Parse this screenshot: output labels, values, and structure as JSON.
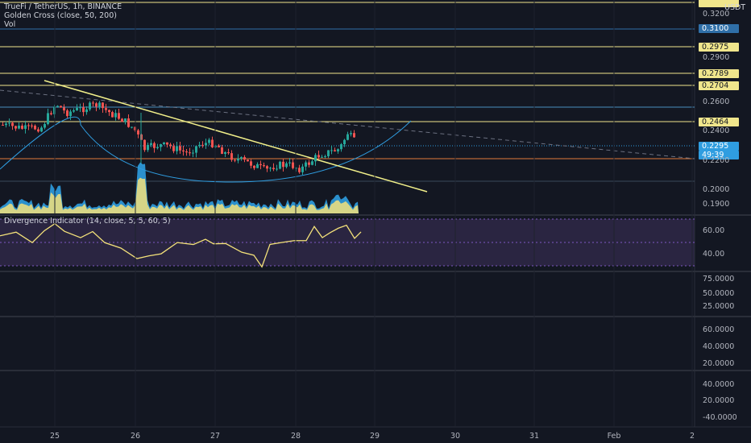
{
  "header": {
    "symbol_line": "TrueFi / TetherUS, 1h, BINANCE",
    "indicator_line": "Golden Cross (close, 50, 200)",
    "volume_label": "Vol"
  },
  "price_axis": {
    "currency": "USDT",
    "ticks": [
      "0.3200",
      "0.3100",
      "0.2900",
      "0.2600",
      "0.2400",
      "0.2200",
      "0.2000",
      "0.1900"
    ],
    "level_tags": [
      "0.2975",
      "0.2789",
      "0.2704",
      "0.2464"
    ],
    "current_price": "0.2295",
    "countdown": "49:39"
  },
  "divergence": {
    "title": "Divergence Indicator (14, close, 5, 5, 60, 5)",
    "ticks": [
      "60.00",
      "40.00"
    ]
  },
  "pane3": {
    "ticks": [
      "75.0000",
      "50.0000",
      "25.0000"
    ]
  },
  "pane4": {
    "ticks": [
      "60.0000",
      "40.0000",
      "20.0000"
    ]
  },
  "pane5": {
    "ticks": [
      "40.0000",
      "20.0000",
      "-40.0000"
    ]
  },
  "time_axis": {
    "labels": [
      "25",
      "26",
      "27",
      "28",
      "29",
      "30",
      "31",
      "Feb",
      "2"
    ]
  },
  "colors": {
    "background": "#131722",
    "level_line": "#f0e68c",
    "trend_line": "#f2f08a",
    "arc": "#2f9de0",
    "up": "#26a69a",
    "down": "#ef5350",
    "volume_blue": "#2f9de0",
    "volume_yellow": "#f4e27a",
    "osc_line": "#f4e27a",
    "osc_band": "#2a2541"
  }
}
